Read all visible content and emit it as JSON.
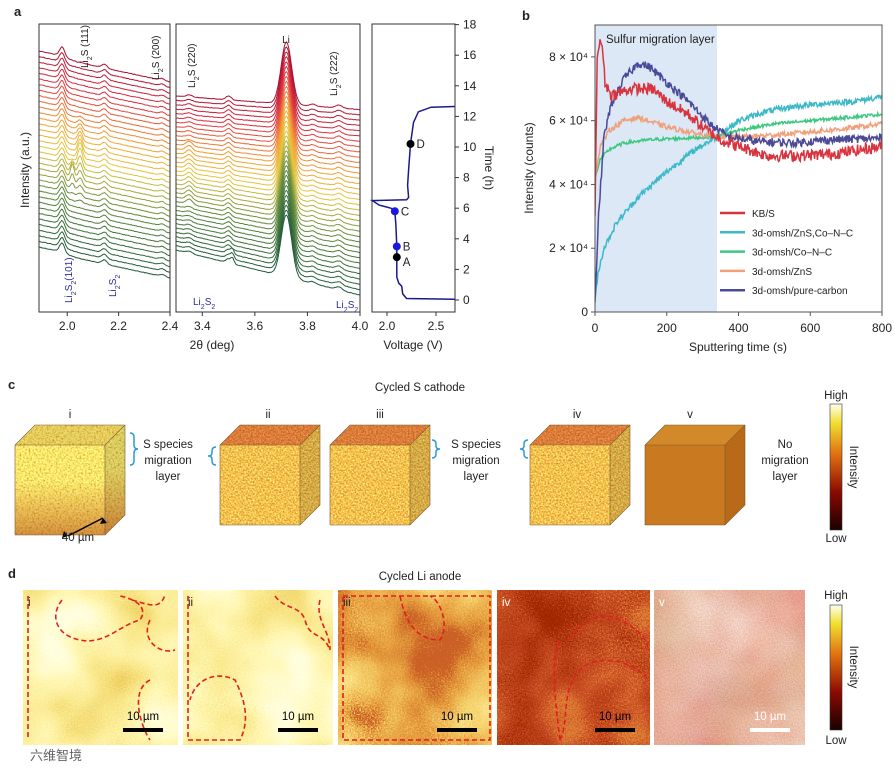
{
  "panel_labels": {
    "a": "a",
    "b": "b",
    "c": "c",
    "d": "d"
  },
  "chart_data": [
    {
      "id": "a",
      "type": "line",
      "ylabel": "Intensity (a.u.)",
      "xlabel": "2θ (deg)",
      "trace_count": 36,
      "subplots": [
        {
          "xlim": [
            1.89,
            2.4
          ],
          "xticks": [
            2.0,
            2.2,
            2.4
          ],
          "xtick_labels": [
            "2.0",
            "2.2",
            "2.4"
          ],
          "annotations_top": [
            "Li2S (111)",
            "Li2S (200)"
          ],
          "annotations_bottom": [
            "Li2S2(101)",
            "Li2S2"
          ]
        },
        {
          "xlim": [
            3.3,
            4.0
          ],
          "xticks": [
            3.4,
            3.6,
            3.8,
            4.0
          ],
          "xtick_labels": [
            "3.4",
            "3.6",
            "3.8",
            "4.0"
          ],
          "annotations_top": [
            "Li2S (220)",
            "Li",
            "Li2S (222)"
          ],
          "annotations_bottom": [
            "Li2S2",
            "Li2S2"
          ]
        }
      ],
      "voltage_profile": {
        "xlabel": "Voltage (V)",
        "ylabel": "Time (h)",
        "xlim": [
          1.85,
          2.69
        ],
        "ylim": [
          -0.5,
          18
        ],
        "xticks": [
          2.0,
          2.5
        ],
        "xtick_labels": [
          "2.0",
          "2.5"
        ],
        "yticks": [
          0,
          2,
          4,
          6,
          8,
          10,
          12,
          14,
          16,
          18
        ],
        "ytick_labels": [
          "0",
          "2",
          "4",
          "6",
          "8",
          "10",
          "12",
          "14",
          "16",
          "18"
        ],
        "curve": [
          [
            2.69,
            0.05
          ],
          [
            2.2,
            0.1
          ],
          [
            2.16,
            0.4
          ],
          [
            2.15,
            0.9
          ],
          [
            2.12,
            1.1
          ],
          [
            2.1,
            1.5
          ],
          [
            2.1,
            2.5
          ],
          [
            2.1,
            3.5
          ],
          [
            2.09,
            5.0
          ],
          [
            2.08,
            5.8
          ],
          [
            2.04,
            6.0
          ],
          [
            1.92,
            6.2
          ],
          [
            1.85,
            6.5
          ],
          [
            2.2,
            6.55
          ],
          [
            2.22,
            6.7
          ],
          [
            2.21,
            7.5
          ],
          [
            2.22,
            8.5
          ],
          [
            2.24,
            10.2
          ],
          [
            2.27,
            11.6
          ],
          [
            2.32,
            12.3
          ],
          [
            2.45,
            12.6
          ],
          [
            2.69,
            12.65
          ]
        ],
        "markers": [
          {
            "label": "A",
            "voltage": 2.1,
            "time": 2.8,
            "color": "#000000"
          },
          {
            "label": "B",
            "voltage": 2.1,
            "time": 3.5,
            "color": "#1a1adc"
          },
          {
            "label": "C",
            "voltage": 2.08,
            "time": 5.8,
            "color": "#1a1adc"
          },
          {
            "label": "D",
            "voltage": 2.24,
            "time": 10.2,
            "color": "#000000"
          }
        ],
        "line_color": "#1a1a8c"
      }
    },
    {
      "id": "b",
      "type": "line",
      "xlabel": "Sputtering time (s)",
      "ylabel": "Intensity (counts)",
      "xlim": [
        0,
        800
      ],
      "ylim": [
        0,
        90000
      ],
      "xticks": [
        0,
        200,
        400,
        600,
        800
      ],
      "xtick_labels": [
        "0",
        "200",
        "400",
        "600",
        "800"
      ],
      "yticks": [
        0,
        20000,
        40000,
        60000,
        80000
      ],
      "ytick_labels": [
        "0",
        "2 × 10⁴",
        "4 × 10⁴",
        "6 × 10⁴",
        "8 × 10⁴"
      ],
      "shaded_region": {
        "label": "Sulfur migration layer",
        "x": [
          0,
          340
        ],
        "color": "#dce8f5"
      },
      "legend_position": "bottom-right",
      "series": [
        {
          "name": "KB/S",
          "color": "#d8343f",
          "noise": 1800,
          "points": [
            [
              0,
              30000
            ],
            [
              6,
              80000
            ],
            [
              12,
              84000
            ],
            [
              20,
              84000
            ],
            [
              28,
              72000
            ],
            [
              45,
              68000
            ],
            [
              100,
              70000
            ],
            [
              160,
              70000
            ],
            [
              200,
              66000
            ],
            [
              260,
              62000
            ],
            [
              300,
              58000
            ],
            [
              350,
              54000
            ],
            [
              400,
              52000
            ],
            [
              480,
              49000
            ],
            [
              560,
              49000
            ],
            [
              650,
              49500
            ],
            [
              720,
              50500
            ],
            [
              800,
              52000
            ]
          ]
        },
        {
          "name": "3d-omsh/ZnS,Co–N–C",
          "color": "#3cb8c8",
          "noise": 900,
          "points": [
            [
              0,
              4000
            ],
            [
              8,
              12000
            ],
            [
              25,
              20000
            ],
            [
              60,
              28000
            ],
            [
              120,
              36000
            ],
            [
              200,
              44000
            ],
            [
              280,
              51000
            ],
            [
              340,
              55000
            ],
            [
              400,
              60000
            ],
            [
              480,
              63000
            ],
            [
              560,
              64500
            ],
            [
              650,
              65500
            ],
            [
              720,
              66000
            ],
            [
              800,
              67500
            ]
          ]
        },
        {
          "name": "3d-omsh/Co–N–C",
          "color": "#3cc880",
          "noise": 500,
          "points": [
            [
              0,
              42000
            ],
            [
              15,
              48000
            ],
            [
              40,
              51000
            ],
            [
              80,
              53000
            ],
            [
              150,
              54000
            ],
            [
              250,
              54500
            ],
            [
              340,
              55000
            ],
            [
              400,
              57000
            ],
            [
              500,
              59000
            ],
            [
              600,
              60000
            ],
            [
              700,
              61000
            ],
            [
              800,
              62000
            ]
          ]
        },
        {
          "name": "3d-omsh/ZnS",
          "color": "#f0a07a",
          "noise": 800,
          "points": [
            [
              0,
              42000
            ],
            [
              15,
              52000
            ],
            [
              40,
              57000
            ],
            [
              80,
              60000
            ],
            [
              120,
              61000
            ],
            [
              200,
              58000
            ],
            [
              280,
              56000
            ],
            [
              340,
              55000
            ],
            [
              420,
              55000
            ],
            [
              500,
              55500
            ],
            [
              600,
              56500
            ],
            [
              700,
              57500
            ],
            [
              800,
              59000
            ]
          ]
        },
        {
          "name": "3d-omsh/pure-carbon",
          "color": "#4a4a98",
          "noise": 1300,
          "points": [
            [
              0,
              3000
            ],
            [
              10,
              30000
            ],
            [
              25,
              55000
            ],
            [
              45,
              65000
            ],
            [
              80,
              73000
            ],
            [
              120,
              78000
            ],
            [
              150,
              77000
            ],
            [
              200,
              72000
            ],
            [
              260,
              66000
            ],
            [
              320,
              59000
            ],
            [
              370,
              55000
            ],
            [
              450,
              53500
            ],
            [
              550,
              53000
            ],
            [
              650,
              54000
            ],
            [
              800,
              54500
            ]
          ]
        }
      ]
    }
  ],
  "panel_c": {
    "title": "Cycled S cathode",
    "cube_labels": [
      "i",
      "ii",
      "iii",
      "iv",
      "v"
    ],
    "annotation_1": [
      "S species",
      "migration",
      "layer"
    ],
    "annotation_2": [
      "S species",
      "migration",
      "layer"
    ],
    "annotation_3": [
      "No",
      "migration",
      "layer"
    ],
    "scale_bar": "40 µm",
    "colorbar": {
      "high": "High",
      "low": "Low",
      "label": "Intensity"
    }
  },
  "panel_d": {
    "title": "Cycled Li anode",
    "map_labels": [
      "i",
      "ii",
      "iii",
      "iv",
      "v"
    ],
    "scale_bars": [
      "10 µm",
      "10 µm",
      "10 µm",
      "10 µm",
      "10 µm"
    ],
    "colorbar": {
      "high": "High",
      "low": "Low",
      "label": "Intensity"
    }
  },
  "watermark": "六维智境"
}
